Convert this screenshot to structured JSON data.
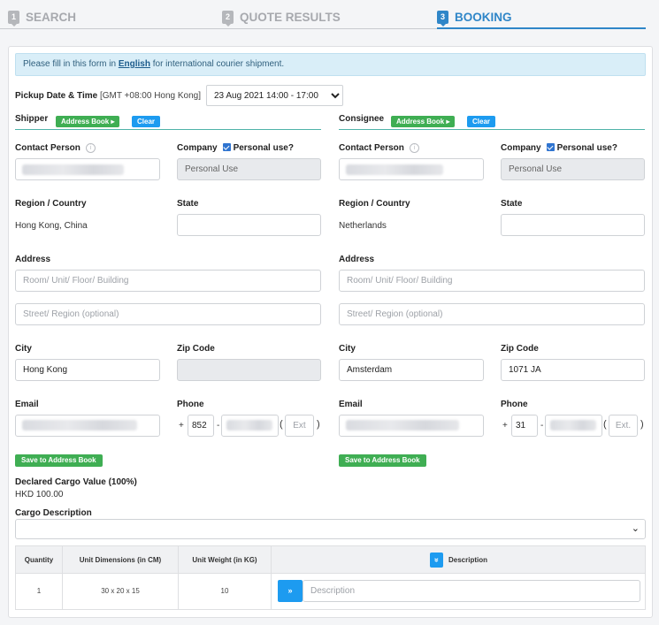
{
  "steps": [
    {
      "num": "1",
      "label": "SEARCH"
    },
    {
      "num": "2",
      "label": "QUOTE RESULTS"
    },
    {
      "num": "3",
      "label": "BOOKING"
    }
  ],
  "notice": {
    "before": "Please fill in this form in ",
    "link": "English",
    "after": " for international courier shipment."
  },
  "pickup": {
    "label": "Pickup Date & Time",
    "timezone": "[GMT +08:00 Hong Kong]",
    "selected": "23 Aug 2021 14:00 - 17:00"
  },
  "shipper": {
    "title": "Shipper",
    "address_book": "Address Book",
    "clear": "Clear",
    "contact_label": "Contact Person",
    "company_label": "Company",
    "personal_use_label": "Personal use?",
    "company_value": "Personal Use",
    "region_label": "Region / Country",
    "region_value": "Hong Kong, China",
    "state_label": "State",
    "address_label": "Address",
    "address1_placeholder": "Room/ Unit/ Floor/ Building",
    "address2_placeholder": "Street/ Region (optional)",
    "city_label": "City",
    "city_value": "Hong Kong",
    "zip_label": "Zip Code",
    "zip_value": "",
    "email_label": "Email",
    "phone_label": "Phone",
    "phone_plus": "+",
    "phone_code": "852",
    "ext_placeholder": "Ext",
    "save": "Save to Address Book"
  },
  "consignee": {
    "title": "Consignee",
    "address_book": "Address Book",
    "clear": "Clear",
    "contact_label": "Contact Person",
    "company_label": "Company",
    "personal_use_label": "Personal use?",
    "company_value": "Personal Use",
    "region_label": "Region / Country",
    "region_value": "Netherlands",
    "state_label": "State",
    "address_label": "Address",
    "address1_placeholder": "Room/ Unit/ Floor/ Building",
    "address2_placeholder": "Street/ Region (optional)",
    "city_label": "City",
    "city_value": "Amsterdam",
    "zip_label": "Zip Code",
    "zip_value": "1071 JA",
    "email_label": "Email",
    "phone_label": "Phone",
    "phone_plus": "+",
    "phone_code": "31",
    "ext_placeholder": "Ext.",
    "save": "Save to Address Book"
  },
  "cargo": {
    "declared_label": "Declared Cargo Value (100%)",
    "declared_value": "HKD 100.00",
    "description_label": "Cargo Description"
  },
  "table": {
    "headers": [
      "Quantity",
      "Unit Dimensions (in CM)",
      "Unit Weight (in KG)",
      "Description"
    ],
    "rows": [
      {
        "quantity": "1",
        "dimensions": "30 x 20 x 15",
        "weight": "10",
        "description_placeholder": "Description"
      }
    ]
  },
  "colors": {
    "accent": "#2f86c8",
    "green": "#3fae53",
    "button_blue": "#1d9bf0"
  }
}
